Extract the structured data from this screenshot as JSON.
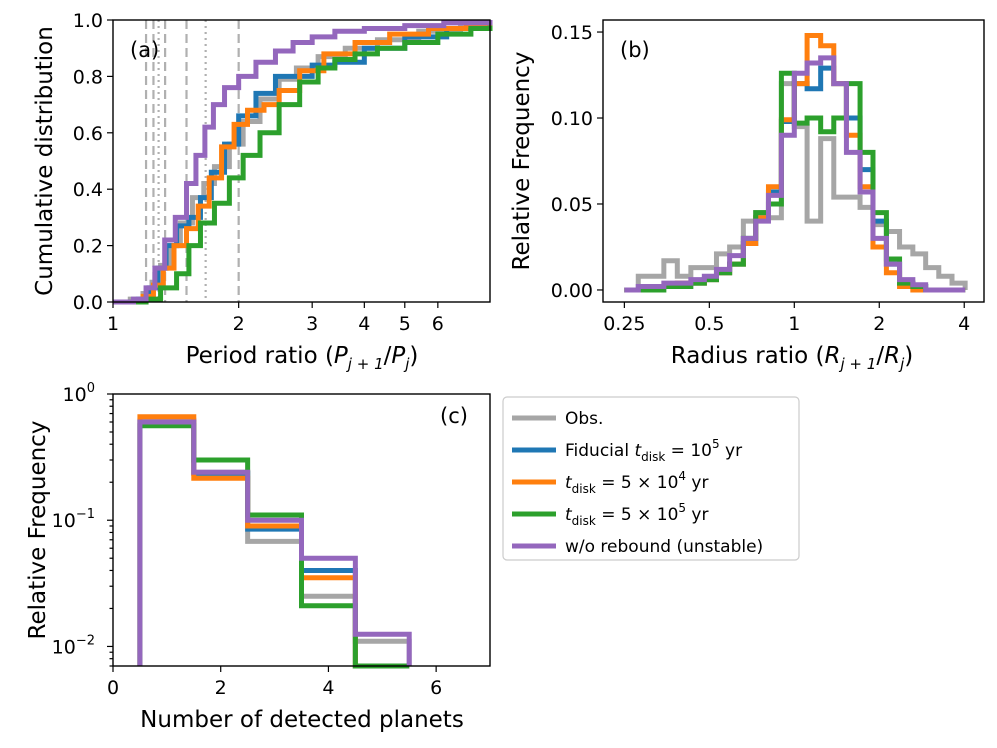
{
  "colors": {
    "obs": "#a6a6a6",
    "fid": "#1f77b4",
    "t5e4": "#ff7f0e",
    "t5e5": "#2ca02c",
    "norb": "#9467bd"
  },
  "chart_data": [
    {
      "id": "a",
      "type": "line",
      "tag": "(a)",
      "xlabel": "Period ratio (P_{j+1}/P_j)",
      "xlabel_main": "Period ratio (",
      "xlabel_p1": "P",
      "xlabel_s1": "j + 1",
      "xlabel_slash": "/",
      "xlabel_p2": "P",
      "xlabel_s2": "j",
      "xlabel_end": ")",
      "ylabel": "Cumulative distribution",
      "xscale": "log",
      "xlim": [
        1,
        8
      ],
      "ylim": [
        0,
        1
      ],
      "xticks": [
        1,
        2,
        3,
        4,
        5,
        6
      ],
      "xticklabels": [
        "1",
        "2",
        "3",
        "4",
        "5",
        "6"
      ],
      "yticks": [
        0,
        0.2,
        0.4,
        0.6,
        0.8,
        1.0
      ],
      "yticklabels": [
        "0.0",
        "0.2",
        "0.4",
        "0.6",
        "0.8",
        "1.0"
      ],
      "resonance_dashed": [
        1.2,
        1.25,
        1.333,
        1.5,
        2.0
      ],
      "resonance_dotted": [
        1.286,
        1.667
      ],
      "series": [
        {
          "name": "Obs.",
          "color": "#a6a6a6",
          "x": [
            1,
            1.1,
            1.18,
            1.24,
            1.3,
            1.37,
            1.45,
            1.55,
            1.65,
            1.75,
            1.9,
            2.05,
            2.25,
            2.5,
            2.75,
            3.1,
            3.6,
            4.3,
            5.4,
            6.8,
            8
          ],
          "y": [
            0,
            0.01,
            0.03,
            0.07,
            0.13,
            0.2,
            0.28,
            0.37,
            0.42,
            0.48,
            0.56,
            0.64,
            0.72,
            0.79,
            0.83,
            0.87,
            0.9,
            0.93,
            0.96,
            0.99,
            1.0
          ]
        },
        {
          "name": "Fiducial",
          "color": "#1f77b4",
          "x": [
            1,
            1.15,
            1.22,
            1.28,
            1.34,
            1.42,
            1.52,
            1.62,
            1.72,
            1.85,
            2.0,
            2.2,
            2.45,
            2.7,
            3.0,
            3.4,
            4.0,
            5.0,
            6.3,
            8
          ],
          "y": [
            0,
            0.01,
            0.05,
            0.12,
            0.2,
            0.27,
            0.3,
            0.37,
            0.46,
            0.56,
            0.66,
            0.74,
            0.8,
            0.8,
            0.84,
            0.85,
            0.9,
            0.94,
            0.97,
            0.99
          ]
        },
        {
          "name": "t_disk = 5×10^4 yr",
          "color": "#ff7f0e",
          "x": [
            1,
            1.18,
            1.25,
            1.32,
            1.4,
            1.5,
            1.6,
            1.7,
            1.82,
            1.95,
            2.1,
            2.3,
            2.5,
            2.8,
            3.2,
            3.8,
            4.6,
            5.7,
            7.0,
            8
          ],
          "y": [
            0,
            0.02,
            0.06,
            0.12,
            0.2,
            0.26,
            0.34,
            0.44,
            0.55,
            0.63,
            0.68,
            0.7,
            0.75,
            0.82,
            0.88,
            0.92,
            0.95,
            0.97,
            0.98,
            0.99
          ]
        },
        {
          "name": "t_disk = 5×10^5 yr",
          "color": "#2ca02c",
          "x": [
            1,
            1.2,
            1.3,
            1.42,
            1.52,
            1.62,
            1.75,
            1.9,
            2.05,
            2.25,
            2.5,
            2.8,
            3.1,
            3.4,
            3.8,
            4.3,
            5.0,
            6.0,
            7.2,
            8
          ],
          "y": [
            0,
            0.01,
            0.05,
            0.1,
            0.2,
            0.28,
            0.35,
            0.44,
            0.52,
            0.6,
            0.7,
            0.78,
            0.83,
            0.86,
            0.88,
            0.9,
            0.92,
            0.95,
            0.97,
            0.98
          ]
        },
        {
          "name": "w/o rebound (unstable)",
          "color": "#9467bd",
          "x": [
            1,
            1.12,
            1.2,
            1.26,
            1.33,
            1.41,
            1.5,
            1.58,
            1.66,
            1.74,
            1.85,
            2.0,
            2.2,
            2.45,
            2.7,
            3.0,
            3.4,
            4.0,
            5.0,
            6.2,
            8
          ],
          "y": [
            0,
            0.01,
            0.05,
            0.12,
            0.22,
            0.3,
            0.42,
            0.52,
            0.62,
            0.7,
            0.76,
            0.8,
            0.85,
            0.89,
            0.92,
            0.94,
            0.96,
            0.97,
            0.98,
            0.99,
            1.0
          ]
        }
      ]
    },
    {
      "id": "b",
      "type": "line",
      "tag": "(b)",
      "xlabel": "Radius ratio (R_{j+1}/R_j)",
      "xlabel_main": "Radius ratio (",
      "xlabel_p1": "R",
      "xlabel_s1": "j + 1",
      "xlabel_slash": "/",
      "xlabel_p2": "R",
      "xlabel_s2": "j",
      "xlabel_end": ")",
      "ylabel": "Relative Frequency",
      "xscale": "log",
      "xlim": [
        0.21,
        4.7
      ],
      "ylim": [
        -0.007,
        0.157
      ],
      "xticks": [
        0.25,
        0.5,
        1,
        2,
        4
      ],
      "xticklabels": [
        "0.25",
        "0.5",
        "1",
        "2",
        "4"
      ],
      "yticks": [
        0,
        0.05,
        0.1,
        0.15
      ],
      "yticklabels": [
        "0.00",
        "0.05",
        "0.10",
        "0.15"
      ],
      "bin_edges": [
        0.25,
        0.28,
        0.31,
        0.345,
        0.385,
        0.43,
        0.48,
        0.53,
        0.59,
        0.66,
        0.73,
        0.81,
        0.9,
        1.0,
        1.11,
        1.24,
        1.38,
        1.53,
        1.71,
        1.9,
        2.12,
        2.36,
        2.63,
        2.92,
        3.25,
        3.62,
        4.03
      ],
      "series": [
        {
          "name": "Obs.",
          "color": "#a6a6a6",
          "values": [
            0.0,
            0.008,
            0.008,
            0.017,
            0.008,
            0.013,
            0.013,
            0.021,
            0.025,
            0.04,
            0.045,
            0.042,
            0.12,
            0.095,
            0.04,
            0.088,
            0.054,
            0.054,
            0.048,
            0.038,
            0.034,
            0.025,
            0.021,
            0.013,
            0.008,
            0.004
          ]
        },
        {
          "name": "Fiducial",
          "color": "#1f77b4",
          "values": [
            0.0,
            0.0,
            0.002,
            0.002,
            0.004,
            0.004,
            0.006,
            0.01,
            0.015,
            0.027,
            0.042,
            0.057,
            0.098,
            0.12,
            0.117,
            0.129,
            0.12,
            0.1,
            0.07,
            0.04,
            0.015,
            0.004,
            0.002,
            0.0,
            0.0,
            0.0
          ]
        },
        {
          "name": "t_disk = 5×10^4 yr",
          "color": "#ff7f0e",
          "values": [
            0.0,
            0.0,
            0.002,
            0.002,
            0.004,
            0.004,
            0.006,
            0.01,
            0.015,
            0.027,
            0.042,
            0.06,
            0.099,
            0.12,
            0.148,
            0.142,
            0.12,
            0.09,
            0.06,
            0.025,
            0.01,
            0.002,
            0.0,
            0.0,
            0.0,
            0.0
          ]
        },
        {
          "name": "t_disk = 5×10^5 yr",
          "color": "#2ca02c",
          "values": [
            0.0,
            0.0,
            0.0,
            0.002,
            0.002,
            0.004,
            0.006,
            0.01,
            0.015,
            0.03,
            0.045,
            0.05,
            0.126,
            0.097,
            0.1,
            0.092,
            0.1,
            0.12,
            0.08,
            0.045,
            0.018,
            0.004,
            0.002,
            0.0,
            0.0,
            0.0
          ]
        },
        {
          "name": "w/o rebound (unstable)",
          "color": "#9467bd",
          "values": [
            0.0,
            0.002,
            0.002,
            0.004,
            0.004,
            0.006,
            0.008,
            0.012,
            0.02,
            0.03,
            0.04,
            0.055,
            0.09,
            0.126,
            0.132,
            0.135,
            0.12,
            0.08,
            0.057,
            0.03,
            0.015,
            0.006,
            0.003,
            0.0,
            0.0,
            0.0
          ]
        }
      ]
    },
    {
      "id": "c",
      "type": "bar",
      "tag": "(c)",
      "xlabel": "Number of detected planets",
      "ylabel": "Relative Frequency",
      "yscale": "log",
      "xlim": [
        0,
        7
      ],
      "ylim": [
        0.007,
        1.0
      ],
      "xticks": [
        0,
        2,
        4,
        6
      ],
      "xticklabels": [
        "0",
        "2",
        "4",
        "6"
      ],
      "yticks": [
        0.01,
        0.1,
        1
      ],
      "yticklabels": [
        {
          "base": "10",
          "exp": "−2"
        },
        {
          "base": "10",
          "exp": "−1"
        },
        {
          "base": "10",
          "exp": "0"
        }
      ],
      "bin_edges": [
        0.5,
        1.5,
        2.5,
        3.5,
        4.5,
        5.5
      ],
      "series": [
        {
          "name": "Obs.",
          "color": "#a6a6a6",
          "values": [
            0.62,
            0.24,
            0.068,
            0.025,
            0.011
          ]
        },
        {
          "name": "Fiducial",
          "color": "#1f77b4",
          "values": [
            0.6,
            0.235,
            0.085,
            0.04,
            0.0
          ]
        },
        {
          "name": "t_disk = 5×10^4 yr",
          "color": "#ff7f0e",
          "values": [
            0.66,
            0.215,
            0.09,
            0.035,
            0.0
          ]
        },
        {
          "name": "t_disk = 5×10^5 yr",
          "color": "#2ca02c",
          "values": [
            0.56,
            0.3,
            0.11,
            0.021,
            0.0
          ]
        },
        {
          "name": "w/o rebound (unstable)",
          "color": "#9467bd",
          "values": [
            0.6,
            0.24,
            0.1,
            0.05,
            0.0125
          ]
        }
      ]
    }
  ],
  "legend": {
    "position": "right of panel (c)",
    "entries": [
      {
        "key": "obs",
        "color": "#a6a6a6",
        "text": "Obs."
      },
      {
        "key": "fid",
        "color": "#1f77b4",
        "prefix": "Fiducial ",
        "t": "t",
        "sub": "disk",
        "mid": " = 10",
        "sup": "5",
        "unit": " yr"
      },
      {
        "key": "t5e4",
        "color": "#ff7f0e",
        "prefix": "",
        "t": "t",
        "sub": "disk",
        "mid": " = 5 × 10",
        "sup": "4",
        "unit": " yr"
      },
      {
        "key": "t5e5",
        "color": "#2ca02c",
        "prefix": "",
        "t": "t",
        "sub": "disk",
        "mid": " = 5 × 10",
        "sup": "5",
        "unit": " yr"
      },
      {
        "key": "norb",
        "color": "#9467bd",
        "text": "w/o rebound (unstable)"
      }
    ]
  }
}
